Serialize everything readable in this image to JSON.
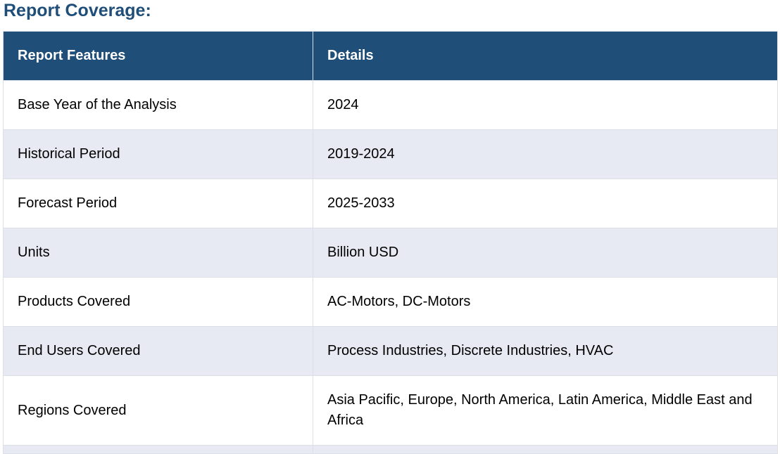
{
  "heading": "Report Coverage:",
  "table": {
    "headers": [
      "Report Features",
      "Details"
    ],
    "rows": [
      [
        "Base Year of the Analysis",
        "2024"
      ],
      [
        "Historical Period",
        "2019-2024"
      ],
      [
        "Forecast Period",
        "2025-2033"
      ],
      [
        "Units",
        "Billion USD"
      ],
      [
        "Products Covered",
        "AC-Motors, DC-Motors"
      ],
      [
        "End Users Covered",
        "Process Industries, Discrete Industries, HVAC"
      ],
      [
        "Regions Covered",
        "Asia Pacific, Europe, North America, Latin America, Middle East and Africa"
      ]
    ]
  },
  "colors": {
    "heading": "#1f4e79",
    "header_bg": "#1f4e79",
    "header_text": "#ffffff",
    "row_alt_bg": "#e7e9f3",
    "row_bg": "#ffffff"
  }
}
